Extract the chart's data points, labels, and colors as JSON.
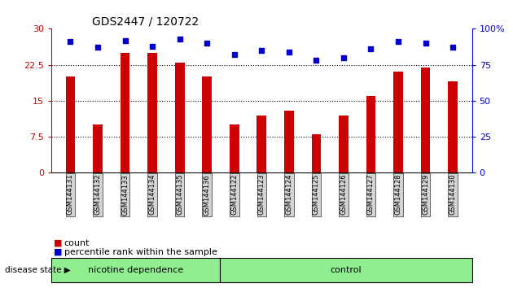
{
  "title": "GDS2447 / 120722",
  "categories": [
    "GSM144131",
    "GSM144132",
    "GSM144133",
    "GSM144134",
    "GSM144135",
    "GSM144136",
    "GSM144122",
    "GSM144123",
    "GSM144124",
    "GSM144125",
    "GSM144126",
    "GSM144127",
    "GSM144128",
    "GSM144129",
    "GSM144130"
  ],
  "bar_values": [
    20.0,
    10.0,
    25.0,
    25.0,
    23.0,
    20.0,
    10.0,
    12.0,
    13.0,
    8.0,
    12.0,
    16.0,
    21.0,
    22.0,
    19.0
  ],
  "dot_values": [
    91,
    87,
    92,
    88,
    93,
    90,
    82,
    85,
    84,
    78,
    80,
    86,
    91,
    90,
    87
  ],
  "bar_color": "#cc0000",
  "dot_color": "#0000cc",
  "ylim_left": [
    0,
    30
  ],
  "ylim_right": [
    0,
    100
  ],
  "yticks_left": [
    0,
    7.5,
    15,
    22.5,
    30
  ],
  "ytick_labels_left": [
    "0",
    "7.5",
    "15",
    "22.5",
    "30"
  ],
  "yticks_right": [
    0,
    25,
    50,
    75,
    100
  ],
  "ytick_labels_right": [
    "0",
    "25",
    "50",
    "75",
    "100%"
  ],
  "group1_label": "nicotine dependence",
  "group2_label": "control",
  "group1_count": 6,
  "group2_count": 9,
  "disease_state_label": "disease state",
  "legend_count": "count",
  "legend_percentile": "percentile rank within the sample",
  "bg_color": "#ffffff",
  "tick_bg_color": "#d3d3d3",
  "group_bg": "#90ee90",
  "bar_width": 0.35
}
